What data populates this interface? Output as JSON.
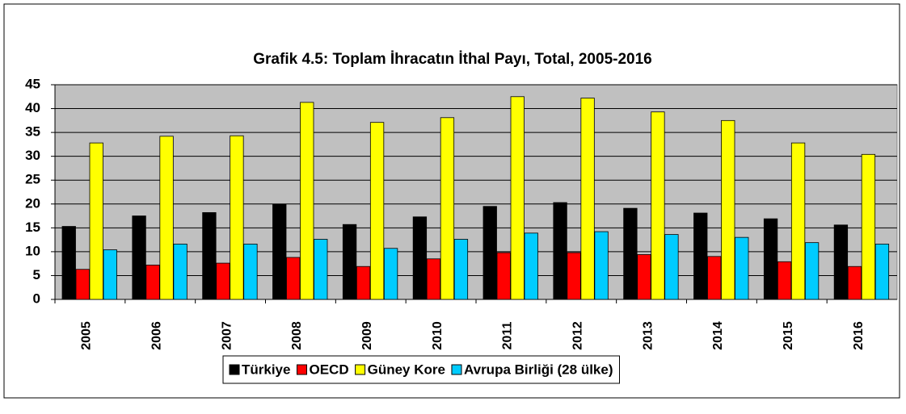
{
  "chart_data": {
    "type": "bar",
    "title": "Grafik 4.5: Toplam İhracatın İthal Payı, Total, 2005-2016",
    "categories": [
      "2005",
      "2006",
      "2007",
      "2008",
      "2009",
      "2010",
      "2011",
      "2012",
      "2013",
      "2014",
      "2015",
      "2016"
    ],
    "series": [
      {
        "name": "Türkiye",
        "color": "#000000",
        "values": [
          15.3,
          17.5,
          18.2,
          19.9,
          15.7,
          17.3,
          19.5,
          20.3,
          19.1,
          18.1,
          16.9,
          15.6
        ]
      },
      {
        "name": "OECD",
        "color": "#ff0000",
        "values": [
          6.3,
          7.2,
          7.6,
          8.8,
          6.9,
          8.5,
          9.8,
          9.8,
          9.4,
          9.0,
          7.9,
          6.9
        ]
      },
      {
        "name": "Güney Kore",
        "color": "#ffff00",
        "values": [
          32.8,
          34.2,
          34.3,
          41.3,
          37.1,
          38.1,
          42.5,
          42.2,
          39.3,
          37.5,
          32.8,
          30.4
        ]
      },
      {
        "name": "Avrupa Birliği (28 ülke)",
        "color": "#00ccff",
        "values": [
          10.4,
          11.6,
          11.6,
          12.6,
          10.7,
          12.6,
          13.9,
          14.2,
          13.6,
          13.0,
          11.9,
          11.6
        ]
      }
    ],
    "ylim": [
      0,
      45
    ],
    "yticks": [
      0,
      5,
      10,
      15,
      20,
      25,
      30,
      35,
      40,
      45
    ],
    "grid": true,
    "legend": "bottom"
  }
}
